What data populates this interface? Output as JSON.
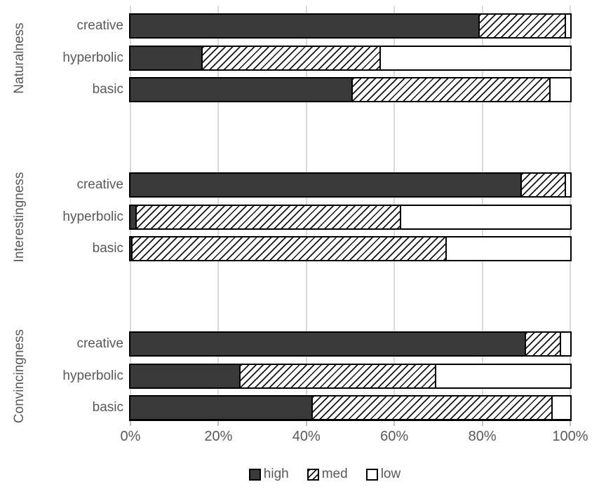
{
  "chart_data": {
    "type": "bar",
    "orientation": "horizontal",
    "stacked": true,
    "title": "",
    "xlabel": "",
    "ylabel": "",
    "xlim": [
      0,
      100
    ],
    "x_ticks": [
      "0%",
      "20%",
      "40%",
      "60%",
      "80%",
      "100%"
    ],
    "grid": true,
    "legend_position": "bottom",
    "legend": [
      {
        "name": "high",
        "style": "solid-dark"
      },
      {
        "name": "med",
        "style": "hatched"
      },
      {
        "name": "low",
        "style": "white"
      }
    ],
    "groups": [
      {
        "label": "Naturalness",
        "rows": [
          {
            "label": "creative",
            "values": {
              "high": 79.5,
              "med": 19.5,
              "low": 1.0
            }
          },
          {
            "label": "hyperbolic",
            "values": {
              "high": 16.5,
              "med": 40.5,
              "low": 43.0
            }
          },
          {
            "label": "basic",
            "values": {
              "high": 50.5,
              "med": 45.0,
              "low": 4.5
            }
          }
        ]
      },
      {
        "label": "Interestingness",
        "rows": [
          {
            "label": "creative",
            "values": {
              "high": 89.0,
              "med": 10.0,
              "low": 1.0
            }
          },
          {
            "label": "hyperbolic",
            "values": {
              "high": 1.5,
              "med": 60.0,
              "low": 38.5
            }
          },
          {
            "label": "basic",
            "values": {
              "high": 0.5,
              "med": 71.5,
              "low": 28.0
            }
          }
        ]
      },
      {
        "label": "Convincingness",
        "rows": [
          {
            "label": "creative",
            "values": {
              "high": 90.0,
              "med": 8.0,
              "low": 2.0
            }
          },
          {
            "label": "hyperbolic",
            "values": {
              "high": 25.0,
              "med": 44.5,
              "low": 30.5
            }
          },
          {
            "label": "basic",
            "values": {
              "high": 41.5,
              "med": 54.5,
              "low": 4.0
            }
          }
        ]
      }
    ],
    "colors": {
      "high_fill": "#3a3a3a",
      "hatch_line": "#141414",
      "low_fill": "#ffffff",
      "gridline": "#d9d9d9",
      "axis_line": "#000000",
      "text": "#595959"
    }
  }
}
